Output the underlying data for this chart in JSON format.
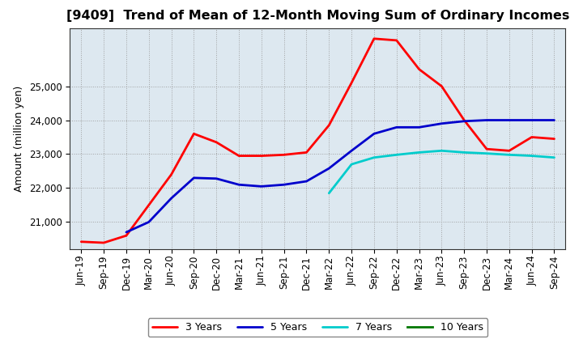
{
  "title": "[9409]  Trend of Mean of 12-Month Moving Sum of Ordinary Incomes",
  "ylabel": "Amount (million yen)",
  "x_labels": [
    "Jun-19",
    "Sep-19",
    "Dec-19",
    "Mar-20",
    "Jun-20",
    "Sep-20",
    "Dec-20",
    "Mar-21",
    "Jun-21",
    "Sep-21",
    "Dec-21",
    "Mar-22",
    "Jun-22",
    "Sep-22",
    "Dec-22",
    "Mar-23",
    "Jun-23",
    "Sep-23",
    "Dec-23",
    "Mar-24",
    "Jun-24",
    "Sep-24"
  ],
  "ylim": [
    20200,
    26700
  ],
  "yticks": [
    21000,
    22000,
    23000,
    24000,
    25000
  ],
  "series": {
    "3 Years": {
      "color": "#ff0000",
      "linewidth": 2.0,
      "x_indices": [
        0,
        1,
        2,
        3,
        4,
        5,
        6,
        7,
        8,
        9,
        10,
        11,
        12,
        13,
        14,
        15,
        16,
        17,
        18,
        19,
        20,
        21
      ],
      "values": [
        20420,
        20390,
        20600,
        21500,
        22400,
        23600,
        23350,
        22950,
        22950,
        22980,
        23050,
        23850,
        25100,
        26400,
        26350,
        25500,
        25000,
        24000,
        23150,
        23100,
        23500,
        23450
      ]
    },
    "5 Years": {
      "color": "#0000cc",
      "linewidth": 2.0,
      "x_indices": [
        2,
        3,
        4,
        5,
        6,
        7,
        8,
        9,
        10,
        11,
        12,
        13,
        14,
        15,
        16,
        17,
        18,
        19,
        20,
        21
      ],
      "values": [
        20700,
        21000,
        21700,
        22300,
        22280,
        22100,
        22050,
        22100,
        22200,
        22580,
        23100,
        23600,
        23790,
        23790,
        23900,
        23970,
        24000,
        24000,
        24000,
        24000
      ]
    },
    "7 Years": {
      "color": "#00cccc",
      "linewidth": 2.0,
      "x_indices": [
        11,
        12,
        13,
        14,
        15,
        16,
        17,
        18,
        19,
        20,
        21
      ],
      "values": [
        21850,
        22700,
        22900,
        22980,
        23050,
        23100,
        23050,
        23020,
        22980,
        22950,
        22900
      ]
    },
    "10 Years": {
      "color": "#007700",
      "linewidth": 2.0,
      "x_indices": [],
      "values": []
    }
  },
  "background_color": "#ffffff",
  "plot_background": "#dde8f0",
  "grid_color": "#aaaaaa",
  "title_fontsize": 11.5,
  "label_fontsize": 9,
  "tick_fontsize": 8.5
}
